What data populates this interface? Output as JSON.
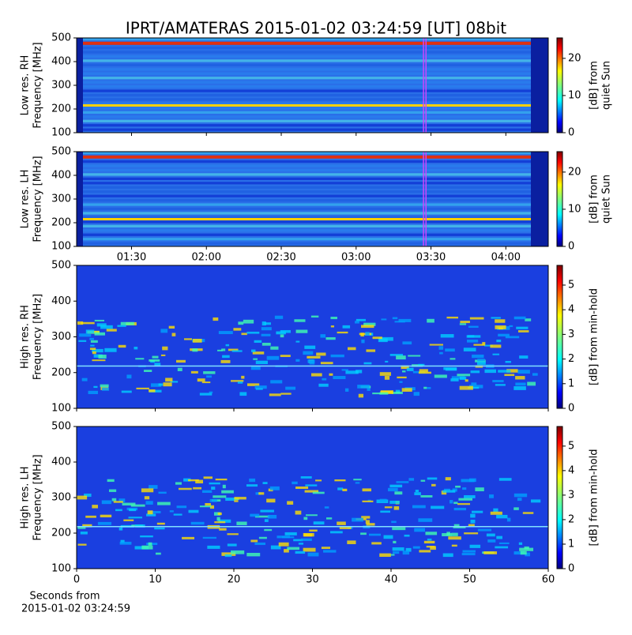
{
  "chart_data": [
    {
      "type": "heatmap",
      "title": "IPRT/AMATERAS 2015-01-02 03:24:59 [UT]   08bit",
      "ylabel": [
        "Low res. RH",
        "Frequency [MHz]"
      ],
      "ylim": [
        100,
        500
      ],
      "yticks": [
        100,
        200,
        300,
        400,
        500
      ],
      "xlim": [
        "01:08",
        "04:17"
      ],
      "vlines": [
        "03:27",
        "03:28"
      ],
      "vline_color": "#cc44ff",
      "colorbar": {
        "label": [
          "[dB] from",
          "quiet Sun"
        ],
        "lim": [
          0,
          25.5
        ],
        "ticks": [
          0,
          10,
          20
        ]
      }
    },
    {
      "type": "heatmap",
      "ylabel": [
        "Low res. LH",
        "Frequency [MHz]"
      ],
      "ylim": [
        100,
        500
      ],
      "yticks": [
        100,
        200,
        300,
        400,
        500
      ],
      "xlim": [
        "01:08",
        "04:17"
      ],
      "xticks": [
        "01:30",
        "02:00",
        "02:30",
        "03:00",
        "03:30",
        "04:00"
      ],
      "vlines": [
        "03:27",
        "03:28"
      ],
      "vline_color": "#cc44ff",
      "colorbar": {
        "label": [
          "[dB] from",
          "quiet Sun"
        ],
        "lim": [
          0,
          25.5
        ],
        "ticks": [
          0,
          10,
          20
        ]
      }
    },
    {
      "type": "heatmap",
      "ylabel": [
        "High res. RH",
        "Frequency [MHz]"
      ],
      "ylim": [
        100,
        500
      ],
      "yticks": [
        100,
        200,
        300,
        400,
        500
      ],
      "xlim": [
        0,
        60
      ],
      "colorbar": {
        "label": [
          "[dB] from min-hold"
        ],
        "lim": [
          0,
          5.8
        ],
        "ticks": [
          0,
          1,
          2,
          3,
          4,
          5
        ]
      }
    },
    {
      "type": "heatmap",
      "ylabel": [
        "High res. LH",
        "Frequency [MHz]"
      ],
      "ylim": [
        100,
        500
      ],
      "yticks": [
        100,
        200,
        300,
        400,
        500
      ],
      "xlim": [
        0,
        60
      ],
      "xticks": [
        0,
        10,
        20,
        30,
        40,
        50,
        60
      ],
      "xlabel": [
        "Seconds from",
        "2015-01-02 03:24:59"
      ],
      "colorbar": {
        "label": [
          "[dB] from min-hold"
        ],
        "lim": [
          0,
          5.8
        ],
        "ticks": [
          0,
          1,
          2,
          3,
          4,
          5
        ]
      }
    }
  ]
}
